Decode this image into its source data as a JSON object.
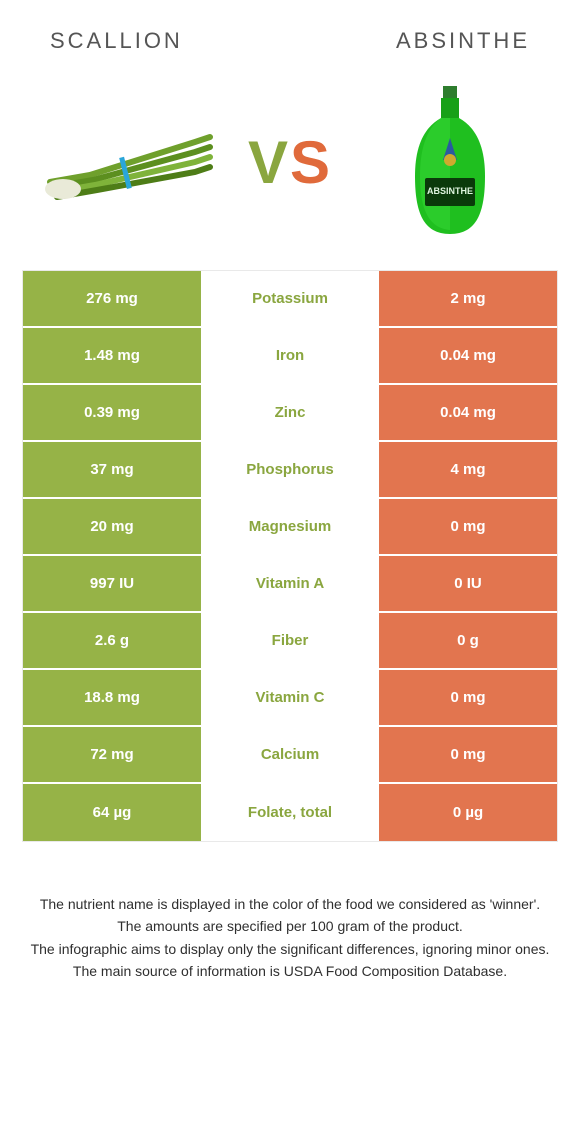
{
  "colors": {
    "left_bg": "#96b347",
    "right_bg": "#e2754f",
    "mid_text_winner_left": "#8aa63f",
    "mid_text_winner_right": "#e2754f",
    "row_sep": "#ffffff"
  },
  "header": {
    "left_title": "SCALLION",
    "right_title": "ABSINTHE",
    "vs_v": "V",
    "vs_s": "S"
  },
  "table": {
    "type": "table",
    "columns": [
      "left_value",
      "nutrient",
      "right_value"
    ],
    "rows": [
      {
        "left": "276 mg",
        "mid": "Potassium",
        "right": "2 mg",
        "winner": "left"
      },
      {
        "left": "1.48 mg",
        "mid": "Iron",
        "right": "0.04 mg",
        "winner": "left"
      },
      {
        "left": "0.39 mg",
        "mid": "Zinc",
        "right": "0.04 mg",
        "winner": "left"
      },
      {
        "left": "37 mg",
        "mid": "Phosphorus",
        "right": "4 mg",
        "winner": "left"
      },
      {
        "left": "20 mg",
        "mid": "Magnesium",
        "right": "0 mg",
        "winner": "left"
      },
      {
        "left": "997 IU",
        "mid": "Vitamin A",
        "right": "0 IU",
        "winner": "left"
      },
      {
        "left": "2.6 g",
        "mid": "Fiber",
        "right": "0 g",
        "winner": "left"
      },
      {
        "left": "18.8 mg",
        "mid": "Vitamin C",
        "right": "0 mg",
        "winner": "left"
      },
      {
        "left": "72 mg",
        "mid": "Calcium",
        "right": "0 mg",
        "winner": "left"
      },
      {
        "left": "64 µg",
        "mid": "Folate, total",
        "right": "0 µg",
        "winner": "left"
      }
    ]
  },
  "footnotes": {
    "line1": "The nutrient name is displayed in the color of the food we considered as 'winner'.",
    "line2": "The amounts are specified per 100 gram of the product.",
    "line3": "The infographic aims to display only the significant differences, ignoring minor ones.",
    "line4": "The main source of information is USDA Food Composition Database."
  }
}
